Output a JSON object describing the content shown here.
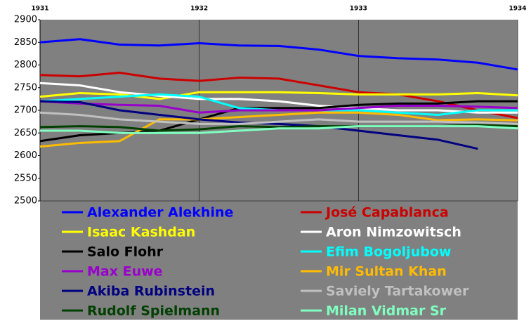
{
  "chart_data": {
    "type": "line",
    "x": [
      1931,
      1931.25,
      1931.5,
      1931.75,
      1932,
      1932.25,
      1932.5,
      1932.75,
      1933,
      1933.25,
      1933.5,
      1933.75,
      1934
    ],
    "xlim": [
      1931,
      1934
    ],
    "xticks": [
      1931,
      1932,
      1933,
      1934
    ],
    "ylim": [
      2500,
      2900
    ],
    "yticks": [
      2500,
      2550,
      2600,
      2650,
      2700,
      2750,
      2800,
      2850,
      2900
    ],
    "grid": true,
    "series": [
      {
        "name": "Alexander Alekhine",
        "color": "#0000ff",
        "values": [
          2850,
          2857,
          2845,
          2843,
          2848,
          2843,
          2842,
          2834,
          2820,
          2815,
          2812,
          2805,
          2790
        ]
      },
      {
        "name": "José Capablanca",
        "color": "#cc0000",
        "values": [
          2778,
          2775,
          2783,
          2770,
          2765,
          2772,
          2770,
          2755,
          2740,
          2735,
          2720,
          2700,
          2683
        ]
      },
      {
        "name": "Isaac Kashdan",
        "color": "#ffff00",
        "values": [
          2730,
          2738,
          2735,
          2725,
          2740,
          2740,
          2740,
          2738,
          2735,
          2735,
          2735,
          2738,
          2733
        ]
      },
      {
        "name": "Aron Nimzowitsch",
        "color": "#ffffff",
        "values": [
          2760,
          2755,
          2740,
          2732,
          2725,
          2725,
          2720,
          2710,
          2705,
          2700,
          2700,
          2695,
          2695
        ]
      },
      {
        "name": "Salo Flohr",
        "color": "#000000",
        "values": [
          2632,
          2645,
          2650,
          2655,
          2680,
          2705,
          2705,
          2705,
          2712,
          2715,
          2715,
          2720,
          2720
        ]
      },
      {
        "name": "Efim Bogoljubow",
        "color": "#00ffff",
        "values": [
          2720,
          2725,
          2730,
          2735,
          2730,
          2705,
          2700,
          2700,
          2700,
          2695,
          2690,
          2700,
          2700
        ]
      },
      {
        "name": "Max Euwe",
        "color": "#9900cc",
        "values": [
          2720,
          2715,
          2712,
          2710,
          2695,
          2700,
          2700,
          2700,
          2705,
          2710,
          2710,
          2708,
          2705
        ]
      },
      {
        "name": "Mir Sultan Khan",
        "color": "#ffbb00",
        "values": [
          2620,
          2628,
          2632,
          2680,
          2680,
          2685,
          2690,
          2695,
          2695,
          2690,
          2678,
          2680,
          2678
        ]
      },
      {
        "name": "Akiba Rubinstein",
        "color": "#000080",
        "values": [
          2720,
          2718,
          2700,
          2690,
          2680,
          2673,
          2670,
          2665,
          2655,
          2645,
          2635,
          2615,
          null
        ]
      },
      {
        "name": "Saviely Tartakower",
        "color": "#c0c0c0",
        "values": [
          2695,
          2690,
          2680,
          2675,
          2670,
          2670,
          2675,
          2680,
          2675,
          2675,
          2675,
          2673,
          2670
        ]
      },
      {
        "name": "Rudolf Spielmann",
        "color": "#004000",
        "values": [
          2663,
          2665,
          2663,
          2655,
          2658,
          2665,
          2663,
          2665,
          2665,
          2665,
          2665,
          2668,
          2665
        ]
      },
      {
        "name": "Milan Vidmar Sr",
        "color": "#80ffc0",
        "values": [
          2655,
          2655,
          2650,
          2650,
          2650,
          2655,
          2660,
          2660,
          2665,
          2665,
          2665,
          2665,
          2660
        ]
      }
    ]
  }
}
